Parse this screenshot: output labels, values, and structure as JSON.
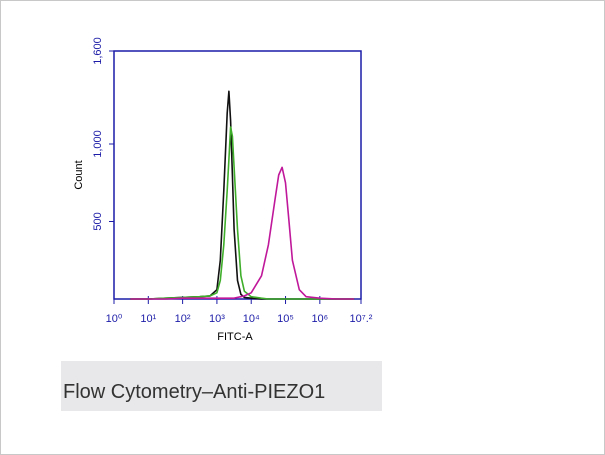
{
  "chart_data": {
    "type": "line",
    "y_label": "Count",
    "x_label": "FITC-A",
    "log_x": true,
    "xlim": [
      1,
      15848932
    ],
    "xticks": [
      {
        "value": 1,
        "label": "10⁰"
      },
      {
        "value": 10,
        "label": "10¹"
      },
      {
        "value": 100,
        "label": "10²"
      },
      {
        "value": 1000,
        "label": "10³"
      },
      {
        "value": 10000,
        "label": "10⁴"
      },
      {
        "value": 100000,
        "label": "10⁵"
      },
      {
        "value": 1000000,
        "label": "10⁶"
      },
      {
        "value": 15848932,
        "label": "10⁷.²"
      }
    ],
    "ylim": [
      0,
      1600
    ],
    "yticks": [
      500,
      {
        "value": 1000,
        "label": "1,000"
      },
      {
        "value": 1600,
        "label": "1,600"
      }
    ],
    "axis_color": "#1c1ca8",
    "x": [
      3,
      10,
      32,
      100,
      316,
      631,
      1000,
      1259,
      1585,
      1995,
      2239,
      2512,
      2818,
      3162,
      3981,
      5012,
      6310,
      10000,
      19953,
      31623,
      50119,
      63096,
      79433,
      100000,
      125893,
      158489,
      251189,
      398107,
      1000000,
      3162278,
      10000000
    ],
    "series": [
      {
        "color": "#111111",
        "values": [
          0,
          0,
          5,
          10,
          15,
          20,
          60,
          250,
          700,
          1200,
          1340,
          1150,
          800,
          450,
          120,
          30,
          10,
          5,
          0,
          0,
          0,
          0,
          0,
          0,
          0,
          0,
          0,
          0,
          0,
          0,
          0
        ]
      },
      {
        "color": "#3fae2a",
        "values": [
          0,
          0,
          5,
          10,
          15,
          20,
          40,
          120,
          350,
          700,
          900,
          1110,
          1050,
          850,
          450,
          150,
          50,
          15,
          5,
          0,
          0,
          0,
          0,
          0,
          0,
          0,
          0,
          0,
          0,
          0,
          0
        ]
      },
      {
        "color": "#c0189a",
        "values": [
          0,
          0,
          0,
          5,
          5,
          5,
          5,
          5,
          5,
          5,
          5,
          5,
          5,
          5,
          10,
          15,
          20,
          40,
          150,
          350,
          650,
          800,
          850,
          750,
          500,
          250,
          60,
          15,
          5,
          0,
          0
        ]
      }
    ]
  },
  "caption": "Flow Cytometry–Anti-PIEZO1"
}
